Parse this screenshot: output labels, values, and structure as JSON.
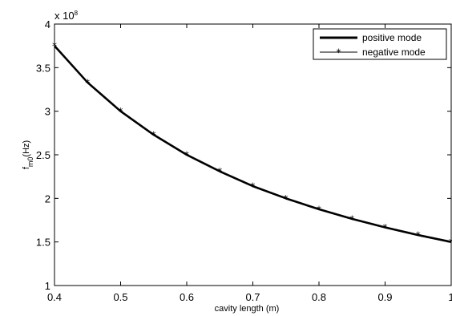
{
  "chart_data": {
    "type": "line",
    "title": "",
    "xlabel": "cavity length (m)",
    "ylabel_main": "f",
    "ylabel_sub": "m0",
    "ylabel_unit": "(Hz)",
    "exponent_prefix": "x 10",
    "exponent_power": "8",
    "xlim": [
      0.4,
      1.0
    ],
    "ylim": [
      1.0,
      4.0
    ],
    "y_scale_factor": 100000000,
    "grid": false,
    "legend_position": "top-right",
    "x_ticks": [
      0.4,
      0.5,
      0.6,
      0.7,
      0.8,
      0.9,
      1.0
    ],
    "x_tick_labels": [
      "0.4",
      "0.5",
      "0.6",
      "0.7",
      "0.8",
      "0.9",
      "1"
    ],
    "y_ticks": [
      1,
      1.5,
      2,
      2.5,
      3,
      3.5,
      4
    ],
    "y_tick_labels": [
      "1",
      "1.5",
      "2",
      "2.5",
      "3",
      "3.5",
      "4"
    ],
    "series": [
      {
        "name": "positive mode",
        "style": "thick-solid",
        "x": [
          0.4,
          0.45,
          0.5,
          0.55,
          0.6,
          0.65,
          0.7,
          0.75,
          0.8,
          0.85,
          0.9,
          0.95,
          1.0
        ],
        "y": [
          3.75,
          3.33,
          3.0,
          2.73,
          2.5,
          2.31,
          2.14,
          2.0,
          1.875,
          1.765,
          1.667,
          1.579,
          1.5
        ]
      },
      {
        "name": "negative mode",
        "style": "thin-asterisk",
        "x": [
          0.4,
          0.45,
          0.5,
          0.55,
          0.6,
          0.65,
          0.7,
          0.75,
          0.8,
          0.85,
          0.9,
          0.95,
          1.0
        ],
        "y": [
          3.75,
          3.33,
          3.0,
          2.73,
          2.5,
          2.31,
          2.14,
          2.0,
          1.875,
          1.765,
          1.667,
          1.579,
          1.5
        ]
      }
    ]
  },
  "colors": {
    "line": "#000000",
    "axes": "#000000",
    "background": "#ffffff"
  }
}
